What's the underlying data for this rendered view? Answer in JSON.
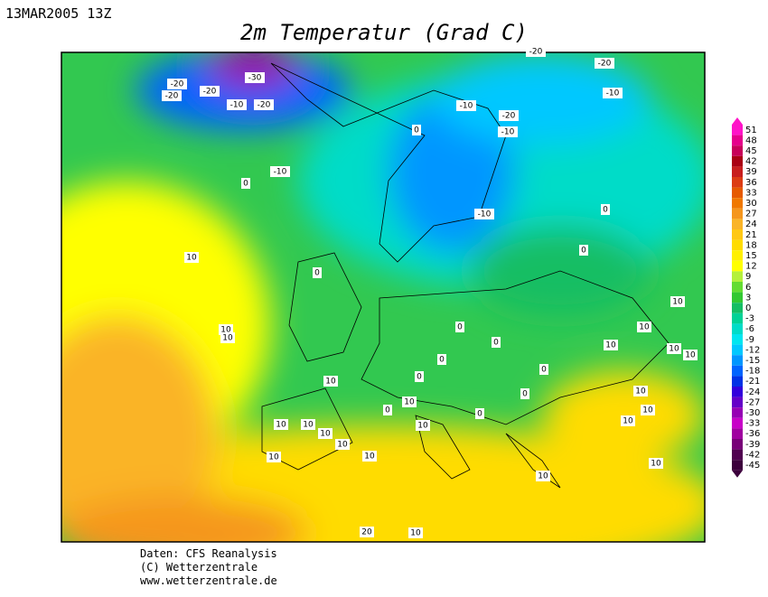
{
  "header": {
    "date": "13MAR2005 13Z",
    "title": "2m Temperatur (Grad C)"
  },
  "contour_labels": [
    "-20",
    "-20",
    "-20",
    "-30",
    "-10",
    "-20",
    "-20",
    "-20",
    "-10",
    "-10",
    "-20",
    "-10",
    "-10",
    "0",
    "0",
    "-10",
    "0",
    "0",
    "10",
    "0",
    "10",
    "10",
    "0",
    "0",
    "10",
    "10",
    "10",
    "10",
    "10",
    "0",
    "0",
    "10",
    "0",
    "0",
    "10",
    "10",
    "0",
    "0",
    "10",
    "10",
    "10",
    "10",
    "10",
    "10",
    "10",
    "10",
    "10",
    "10",
    "10",
    "20",
    "10"
  ],
  "legend": {
    "values": [
      51,
      48,
      45,
      42,
      39,
      36,
      33,
      30,
      27,
      24,
      21,
      18,
      15,
      12,
      9,
      6,
      3,
      0,
      -3,
      -6,
      -9,
      -12,
      -15,
      -18,
      -21,
      -24,
      -27,
      -30,
      -33,
      -36,
      -39,
      -42,
      -45
    ],
    "colors": [
      "#ff14c8",
      "#e6008c",
      "#c8005a",
      "#aa0014",
      "#c81e1e",
      "#dc3c14",
      "#e65a00",
      "#f07800",
      "#f5961e",
      "#fab428",
      "#ffc814",
      "#ffdc00",
      "#fff000",
      "#ffff00",
      "#b4f03c",
      "#64dc32",
      "#32c832",
      "#14be64",
      "#00d296",
      "#00dcc8",
      "#00e6f0",
      "#00c8ff",
      "#0096ff",
      "#0064ff",
      "#0032e6",
      "#3200dc",
      "#6400c8",
      "#9600b4",
      "#c800c8",
      "#a000a0",
      "#780078",
      "#500050",
      "#3c003c"
    ]
  },
  "footer": {
    "line1": "Daten: CFS Reanalysis",
    "line2": "(C) Wetterzentrale",
    "line3": "www.wetterzentrale.de"
  }
}
